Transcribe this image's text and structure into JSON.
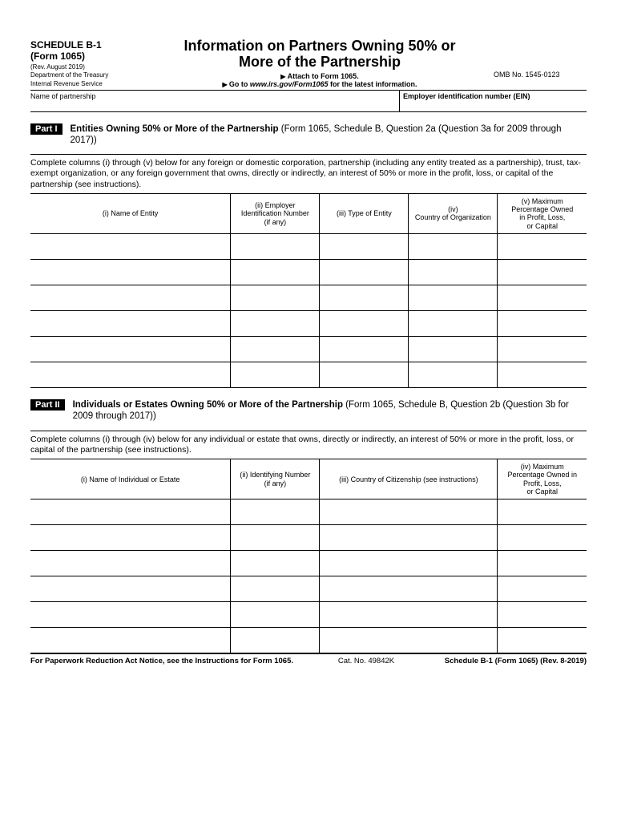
{
  "header": {
    "schedule_line1": "SCHEDULE B-1",
    "schedule_line2": "(Form 1065)",
    "rev": "(Rev. August 2019)",
    "dept1": "Department of the Treasury",
    "dept2": "Internal Revenue Service",
    "title1": "Information on Partners Owning 50% or",
    "title2": "More of the Partnership",
    "attach": "Attach to Form 1065.",
    "goto_prefix": "Go to ",
    "goto_url": "www.irs.gov/Form1065",
    "goto_suffix": " for the latest information.",
    "omb": "OMB No. 1545-0123"
  },
  "namerow": {
    "left": "Name of partnership",
    "right": "Employer identification number (EIN)"
  },
  "part1": {
    "badge": "Part I",
    "title_bold": "Entities Owning 50% or More of the Partnership ",
    "title_rest": "(Form 1065, Schedule B, Question 2a (Question 3a for 2009 through 2017))",
    "instructions": "Complete columns (i) through (v) below for any foreign or domestic corporation, partnership (including any entity treated as a partnership), trust, tax-exempt organization, or any foreign government that owns, directly or indirectly, an interest of 50% or more in the profit, loss, or capital of the partnership (see instructions).",
    "columns": {
      "c1": "(i) Name of Entity",
      "c2": "(ii) Employer\nIdentification Number\n(if any)",
      "c3": "(iii) Type of Entity",
      "c4": "(iv)\nCountry of Organization",
      "c5": "(v) Maximum\nPercentage Owned\nin Profit, Loss,\nor Capital"
    },
    "col_widths": [
      "36%",
      "16%",
      "16%",
      "16%",
      "16%"
    ],
    "row_count": 6
  },
  "part2": {
    "badge": "Part II",
    "title_bold": "Individuals or Estates Owning 50% or More of the Partnership ",
    "title_rest": "(Form 1065, Schedule B, Question 2b (Question 3b for 2009 through 2017))",
    "instructions": "Complete columns (i) through (iv) below for any individual or estate that owns, directly or indirectly, an interest of 50% or more in the profit, loss, or capital of the partnership (see instructions).",
    "columns": {
      "c1": "(i) Name of Individual or Estate",
      "c2": "(ii) Identifying Number\n(if any)",
      "c3": "(iii) Country of Citizenship (see instructions)",
      "c4": "(iv) Maximum\nPercentage Owned in\nProfit, Loss,\nor Capital"
    },
    "col_widths": [
      "36%",
      "16%",
      "32%",
      "16%"
    ],
    "row_count": 6
  },
  "footer": {
    "left": "For Paperwork Reduction Act Notice, see the Instructions for Form 1065.",
    "center": "Cat. No. 49842K",
    "right": "Schedule B-1 (Form 1065) (Rev. 8-2019)"
  },
  "colors": {
    "text": "#000000",
    "background": "#ffffff",
    "badge_bg": "#000000",
    "badge_fg": "#ffffff",
    "rule": "#000000"
  }
}
